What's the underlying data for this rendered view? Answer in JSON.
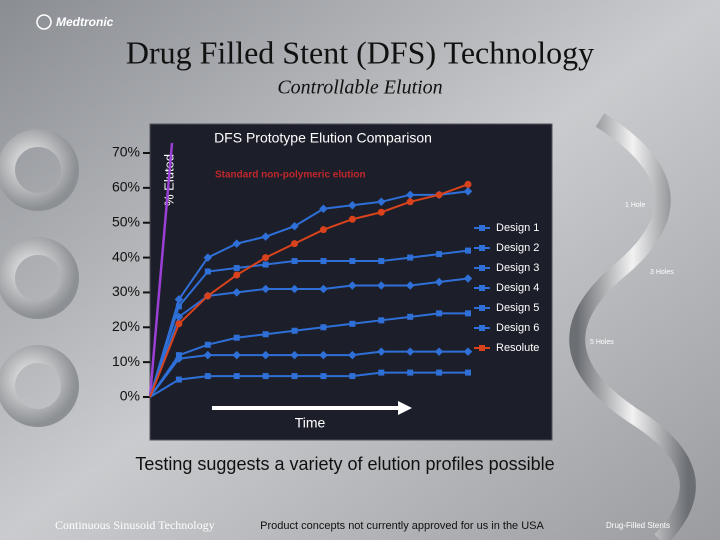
{
  "header": {
    "logo": "Medtronic",
    "title": "Drug Filled Stent (DFS) Technology",
    "subtitle": "Controllable Elution"
  },
  "chart_data": {
    "type": "line",
    "title": "DFS Prototype Elution Comparison",
    "y_label": "% Eluted",
    "x_label": "Time",
    "annotation": "Standard non-polymeric elution",
    "x": [
      0,
      1,
      2,
      3,
      4,
      5,
      6,
      7,
      8,
      9,
      10,
      11
    ],
    "xlim": [
      0,
      11
    ],
    "ylim": [
      0,
      70
    ],
    "yticks": [
      {
        "value": 0,
        "label": "0%"
      },
      {
        "value": 10,
        "label": "10%"
      },
      {
        "value": 20,
        "label": "20%"
      },
      {
        "value": 30,
        "label": "30%"
      },
      {
        "value": 40,
        "label": "40%"
      },
      {
        "value": 50,
        "label": "50%"
      },
      {
        "value": 60,
        "label": "60%"
      },
      {
        "value": 70,
        "label": "70%"
      }
    ],
    "series": [
      {
        "name": "Design 1",
        "color": "#2f6fd8",
        "values": [
          0,
          28,
          40,
          44,
          46,
          49,
          54,
          55,
          56,
          58,
          58,
          59
        ]
      },
      {
        "name": "Design 2",
        "color": "#2f6fd8",
        "values": [
          0,
          26,
          36,
          37,
          38,
          39,
          39,
          39,
          39,
          40,
          41,
          42
        ]
      },
      {
        "name": "Design 3",
        "color": "#2f6fd8",
        "values": [
          0,
          23,
          29,
          30,
          31,
          31,
          31,
          32,
          32,
          32,
          33,
          34
        ]
      },
      {
        "name": "Design 4",
        "color": "#2f6fd8",
        "values": [
          0,
          12,
          15,
          17,
          18,
          19,
          20,
          21,
          22,
          23,
          24,
          24
        ]
      },
      {
        "name": "Design 5",
        "color": "#2f6fd8",
        "values": [
          0,
          11,
          12,
          12,
          12,
          12,
          12,
          12,
          13,
          13,
          13,
          13
        ]
      },
      {
        "name": "Design 6",
        "color": "#2f6fd8",
        "values": [
          0,
          5,
          6,
          6,
          6,
          6,
          6,
          6,
          7,
          7,
          7,
          7
        ]
      },
      {
        "name": "Resolute",
        "color": "#d8421c",
        "values": [
          0,
          21,
          29,
          35,
          40,
          44,
          48,
          51,
          53,
          56,
          58,
          61
        ]
      }
    ]
  },
  "side_labels": [
    "1 Hole",
    "3 Holes",
    "5 Holes"
  ],
  "caption": "Testing suggests a variety of elution profiles possible",
  "footer": {
    "left": "Continuous Sinusoid Technology",
    "center": "Product concepts not currently approved for us in the USA",
    "right": "Drug-Filled Stents"
  }
}
